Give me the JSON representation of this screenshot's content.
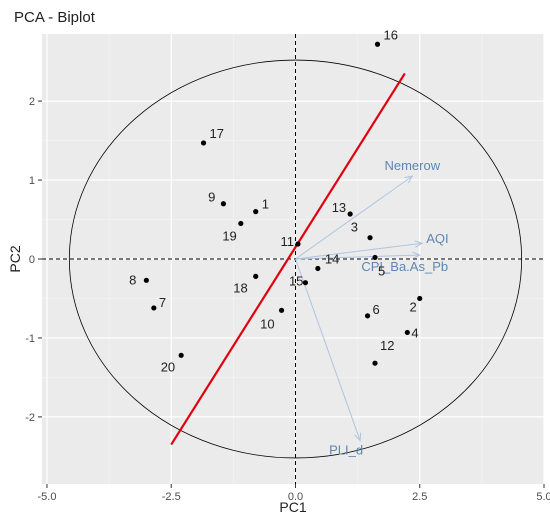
{
  "chart_data": {
    "type": "scatter",
    "title": "PCA - Biplot",
    "xlabel": "PC1",
    "ylabel": "PC2",
    "xlim": [
      -5.1,
      5.0
    ],
    "ylim": [
      -2.85,
      2.85
    ],
    "x_ticks": [
      -5.0,
      -2.5,
      0.0,
      2.5,
      5.0
    ],
    "x_tick_labels": [
      "-5.0",
      "-2.5",
      "0.0",
      "2.5",
      "5.0"
    ],
    "y_ticks": [
      -2,
      -1,
      0,
      1,
      2
    ],
    "y_tick_labels": [
      "-2",
      "-1",
      "0",
      "1",
      "2"
    ],
    "grid": true,
    "background": "#ebebeb",
    "colors": {
      "points": "#000000",
      "vectors": "#b0c4de",
      "vector_labels": "#5f86b0",
      "regression_line": "#e0000f",
      "circle": "#000000",
      "guides": "#000000"
    },
    "points": [
      {
        "label": "1",
        "x": -0.8,
        "y": 0.6
      },
      {
        "label": "2",
        "x": 2.5,
        "y": -0.5
      },
      {
        "label": "3",
        "x": 1.5,
        "y": 0.27
      },
      {
        "label": "4",
        "x": 2.25,
        "y": -0.93
      },
      {
        "label": "5",
        "x": 1.6,
        "y": 0.02
      },
      {
        "label": "6",
        "x": 1.45,
        "y": -0.72
      },
      {
        "label": "7",
        "x": -2.85,
        "y": -0.62
      },
      {
        "label": "8",
        "x": -3.0,
        "y": -0.27
      },
      {
        "label": "9",
        "x": -1.45,
        "y": 0.7
      },
      {
        "label": "10",
        "x": -0.28,
        "y": -0.65
      },
      {
        "label": "11",
        "x": 0.05,
        "y": 0.19
      },
      {
        "label": "12",
        "x": 1.6,
        "y": -1.32
      },
      {
        "label": "13",
        "x": 1.1,
        "y": 0.57
      },
      {
        "label": "14",
        "x": 0.45,
        "y": -0.12
      },
      {
        "label": "15",
        "x": 0.2,
        "y": -0.3
      },
      {
        "label": "16",
        "x": 1.65,
        "y": 2.72
      },
      {
        "label": "17",
        "x": -1.85,
        "y": 1.47
      },
      {
        "label": "18",
        "x": -0.8,
        "y": -0.22
      },
      {
        "label": "19",
        "x": -1.1,
        "y": 0.45
      },
      {
        "label": "20",
        "x": -2.3,
        "y": -1.22
      }
    ],
    "vectors": [
      {
        "label": "Nemerow",
        "x": 2.35,
        "y": 1.05
      },
      {
        "label": "AQI",
        "x": 2.55,
        "y": 0.2
      },
      {
        "label": "CPI_Ba.As_Pb",
        "x": 2.5,
        "y": 0.05
      },
      {
        "label": "PLI_d",
        "x": 1.3,
        "y": -2.3
      }
    ],
    "circle": {
      "cx": 0,
      "cy": 0,
      "rx": 4.55,
      "ry": 2.52
    },
    "regression_line": {
      "x1": -2.5,
      "y1": -2.35,
      "x2": 2.2,
      "y2": 2.35
    }
  }
}
